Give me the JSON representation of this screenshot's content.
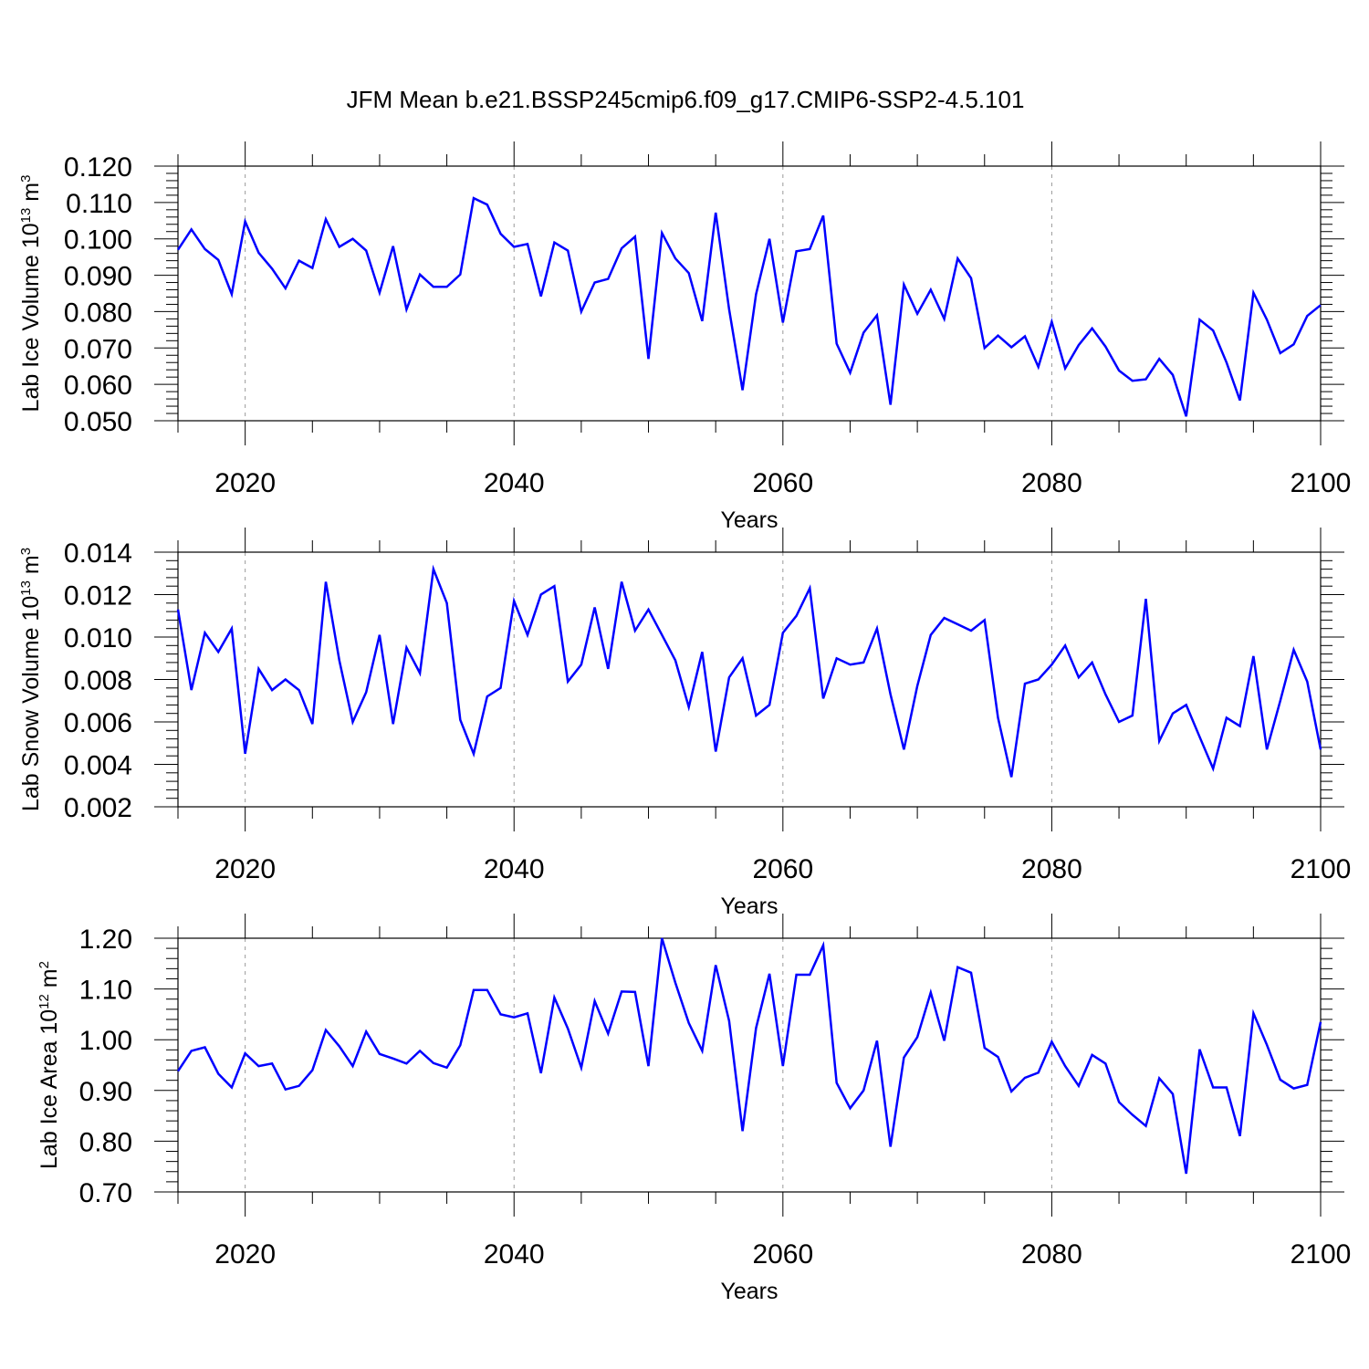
{
  "figure_title": "JFM Mean b.e21.BSSP245cmip6.f09_g17.CMIP6-SSP2-4.5.101",
  "line_color": "#0000ff",
  "chart_data": [
    {
      "type": "line",
      "ylabel_main": "Lab Ice Volume 10",
      "ylabel_exp": "13",
      "ylabel_unit": " m",
      "ylabel_unit_exp": "3",
      "xlabel": "Years",
      "xlim": [
        2015,
        2100
      ],
      "ylim": [
        0.05,
        0.12
      ],
      "yticks": [
        "0.050",
        "0.060",
        "0.070",
        "0.080",
        "0.090",
        "0.100",
        "0.110",
        "0.120"
      ],
      "yticks_values": [
        0.05,
        0.06,
        0.07,
        0.08,
        0.09,
        0.1,
        0.11,
        0.12
      ],
      "xticks": [
        "2020",
        "2040",
        "2060",
        "2080",
        "2100"
      ],
      "xticks_values": [
        2020,
        2040,
        2060,
        2080,
        2100
      ],
      "grid": "vertical dashed at major x ticks",
      "x": [
        2015,
        2016,
        2017,
        2018,
        2019,
        2020,
        2021,
        2022,
        2023,
        2024,
        2025,
        2026,
        2027,
        2028,
        2029,
        2030,
        2031,
        2032,
        2033,
        2034,
        2035,
        2036,
        2037,
        2038,
        2039,
        2040,
        2041,
        2042,
        2043,
        2044,
        2045,
        2046,
        2047,
        2048,
        2049,
        2050,
        2051,
        2052,
        2053,
        2054,
        2055,
        2056,
        2057,
        2058,
        2059,
        2060,
        2061,
        2062,
        2063,
        2064,
        2065,
        2066,
        2067,
        2068,
        2069,
        2070,
        2071,
        2072,
        2073,
        2074,
        2075,
        2076,
        2077,
        2078,
        2079,
        2080,
        2081,
        2082,
        2083,
        2084,
        2085,
        2086,
        2087,
        2088,
        2089,
        2090,
        2091,
        2092,
        2093,
        2094,
        2095,
        2096,
        2097,
        2098,
        2099,
        2100
      ],
      "values": [
        0.097,
        0.1026,
        0.0972,
        0.0942,
        0.0848,
        0.1048,
        0.0962,
        0.0918,
        0.0864,
        0.094,
        0.092,
        0.1054,
        0.0978,
        0.1,
        0.0968,
        0.0852,
        0.098,
        0.0806,
        0.0902,
        0.0868,
        0.0868,
        0.0902,
        0.1112,
        0.1094,
        0.1014,
        0.0978,
        0.0986,
        0.0842,
        0.099,
        0.0968,
        0.08,
        0.088,
        0.089,
        0.0974,
        0.1006,
        0.067,
        0.1016,
        0.0946,
        0.0906,
        0.0774,
        0.1072,
        0.0806,
        0.0584,
        0.0848,
        0.1,
        0.077,
        0.0966,
        0.0972,
        0.1064,
        0.0712,
        0.0632,
        0.0742,
        0.079,
        0.0544,
        0.0874,
        0.0794,
        0.086,
        0.078,
        0.0946,
        0.0892,
        0.07,
        0.0734,
        0.0702,
        0.0732,
        0.0648,
        0.0772,
        0.0644,
        0.0708,
        0.0754,
        0.0704,
        0.0638,
        0.061,
        0.0614,
        0.067,
        0.0626,
        0.0512,
        0.0778,
        0.0748,
        0.066,
        0.0556,
        0.0852,
        0.0778,
        0.0686,
        0.071,
        0.0788,
        0.0818
      ]
    },
    {
      "type": "line",
      "ylabel_main": "Lab Snow Volume 10",
      "ylabel_exp": "13",
      "ylabel_unit": " m",
      "ylabel_unit_exp": "3",
      "xlabel": "Years",
      "xlim": [
        2015,
        2100
      ],
      "ylim": [
        0.002,
        0.014
      ],
      "yticks": [
        "0.002",
        "0.004",
        "0.006",
        "0.008",
        "0.010",
        "0.012",
        "0.014"
      ],
      "yticks_values": [
        0.002,
        0.004,
        0.006,
        0.008,
        0.01,
        0.012,
        0.014
      ],
      "xticks": [
        "2020",
        "2040",
        "2060",
        "2080",
        "2100"
      ],
      "xticks_values": [
        2020,
        2040,
        2060,
        2080,
        2100
      ],
      "grid": "vertical dashed at major x ticks",
      "x": [
        2015,
        2016,
        2017,
        2018,
        2019,
        2020,
        2021,
        2022,
        2023,
        2024,
        2025,
        2026,
        2027,
        2028,
        2029,
        2030,
        2031,
        2032,
        2033,
        2034,
        2035,
        2036,
        2037,
        2038,
        2039,
        2040,
        2041,
        2042,
        2043,
        2044,
        2045,
        2046,
        2047,
        2048,
        2049,
        2050,
        2051,
        2052,
        2053,
        2054,
        2055,
        2056,
        2057,
        2058,
        2059,
        2060,
        2061,
        2062,
        2063,
        2064,
        2065,
        2066,
        2067,
        2068,
        2069,
        2070,
        2071,
        2072,
        2073,
        2074,
        2075,
        2076,
        2077,
        2078,
        2079,
        2080,
        2081,
        2082,
        2083,
        2084,
        2085,
        2086,
        2087,
        2088,
        2089,
        2090,
        2091,
        2092,
        2093,
        2094,
        2095,
        2096,
        2097,
        2098,
        2099,
        2100
      ],
      "values": [
        0.0113,
        0.0075,
        0.0102,
        0.0093,
        0.0104,
        0.0045,
        0.0085,
        0.0075,
        0.008,
        0.0075,
        0.0059,
        0.0126,
        0.0089,
        0.006,
        0.0074,
        0.0101,
        0.0059,
        0.0095,
        0.0083,
        0.0132,
        0.0116,
        0.0061,
        0.0045,
        0.0072,
        0.0076,
        0.0117,
        0.0101,
        0.012,
        0.0124,
        0.0079,
        0.0087,
        0.0114,
        0.0085,
        0.0126,
        0.0103,
        0.0113,
        0.0101,
        0.0089,
        0.0067,
        0.0093,
        0.0046,
        0.0081,
        0.009,
        0.0063,
        0.0068,
        0.0102,
        0.011,
        0.0123,
        0.0071,
        0.009,
        0.0087,
        0.0088,
        0.0104,
        0.0073,
        0.0047,
        0.0077,
        0.0101,
        0.0109,
        0.0106,
        0.0103,
        0.0108,
        0.0062,
        0.0034,
        0.0078,
        0.008,
        0.0087,
        0.0096,
        0.0081,
        0.0088,
        0.0073,
        0.006,
        0.0063,
        0.0118,
        0.0051,
        0.0064,
        0.0068,
        0.0053,
        0.0038,
        0.0062,
        0.0058,
        0.0091,
        0.0047,
        0.007,
        0.0094,
        0.0079,
        0.0047
      ]
    },
    {
      "type": "line",
      "ylabel_main": "Lab Ice Area 10",
      "ylabel_exp": "12",
      "ylabel_unit": " m",
      "ylabel_unit_exp": "2",
      "xlabel": "Years",
      "xlim": [
        2015,
        2100
      ],
      "ylim": [
        0.7,
        1.2
      ],
      "yticks": [
        "0.70",
        "0.80",
        "0.90",
        "1.00",
        "1.10",
        "1.20"
      ],
      "yticks_values": [
        0.7,
        0.8,
        0.9,
        1.0,
        1.1,
        1.2
      ],
      "xticks": [
        "2020",
        "2040",
        "2060",
        "2080",
        "2100"
      ],
      "xticks_values": [
        2020,
        2040,
        2060,
        2080,
        2100
      ],
      "grid": "vertical dashed at major x ticks",
      "x": [
        2015,
        2016,
        2017,
        2018,
        2019,
        2020,
        2021,
        2022,
        2023,
        2024,
        2025,
        2026,
        2027,
        2028,
        2029,
        2030,
        2031,
        2032,
        2033,
        2034,
        2035,
        2036,
        2037,
        2038,
        2039,
        2040,
        2041,
        2042,
        2043,
        2044,
        2045,
        2046,
        2047,
        2048,
        2049,
        2050,
        2051,
        2052,
        2053,
        2054,
        2055,
        2056,
        2057,
        2058,
        2059,
        2060,
        2061,
        2062,
        2063,
        2064,
        2065,
        2066,
        2067,
        2068,
        2069,
        2070,
        2071,
        2072,
        2073,
        2074,
        2075,
        2076,
        2077,
        2078,
        2079,
        2080,
        2081,
        2082,
        2083,
        2084,
        2085,
        2086,
        2087,
        2088,
        2089,
        2090,
        2091,
        2092,
        2093,
        2094,
        2095,
        2096,
        2097,
        2098,
        2099,
        2100
      ],
      "values": [
        0.938,
        0.978,
        0.985,
        0.933,
        0.906,
        0.973,
        0.948,
        0.953,
        0.902,
        0.909,
        0.94,
        1.019,
        0.987,
        0.948,
        1.016,
        0.972,
        0.963,
        0.953,
        0.978,
        0.954,
        0.945,
        0.989,
        1.098,
        1.098,
        1.05,
        1.044,
        1.052,
        0.934,
        1.083,
        1.022,
        0.945,
        1.076,
        1.012,
        1.095,
        1.094,
        0.948,
        1.2,
        1.112,
        1.033,
        0.978,
        1.147,
        1.037,
        0.82,
        1.023,
        1.13,
        0.948,
        1.128,
        1.128,
        1.186,
        0.915,
        0.865,
        0.9,
        0.998,
        0.789,
        0.965,
        1.005,
        1.093,
        0.998,
        1.143,
        1.132,
        0.984,
        0.966,
        0.898,
        0.925,
        0.935,
        0.996,
        0.948,
        0.909,
        0.97,
        0.953,
        0.877,
        0.852,
        0.83,
        0.924,
        0.893,
        0.736,
        0.981,
        0.906,
        0.906,
        0.81,
        1.052,
        0.99,
        0.921,
        0.904,
        0.911,
        1.035
      ]
    }
  ]
}
